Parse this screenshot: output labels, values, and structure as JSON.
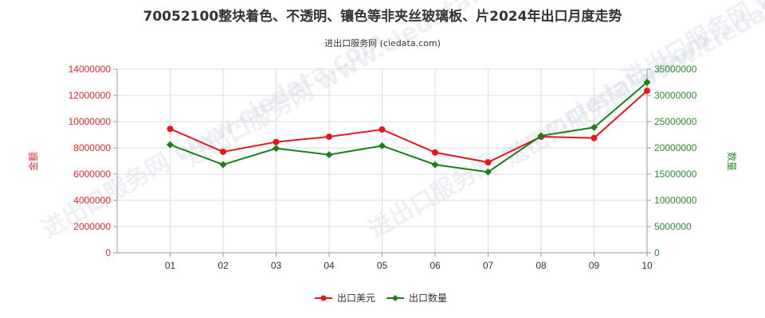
{
  "chart_data": {
    "type": "line",
    "title": "70052100整块着色、不透明、镶色等非夹丝玻璃板、片2024年出口月度走势",
    "subtitle": "进出口服务网 (ciedata.com)",
    "watermark": "进出口服务网 www.ciedata.com",
    "categories": [
      "01",
      "02",
      "03",
      "04",
      "05",
      "06",
      "07",
      "08",
      "09",
      "10"
    ],
    "y_left": {
      "label": "金额",
      "range": [
        0,
        14000000
      ],
      "ticks": [
        "0",
        "2000000",
        "4000000",
        "6000000",
        "8000000",
        "10000000",
        "12000000",
        "14000000"
      ],
      "color": "#e8282a"
    },
    "y_right": {
      "label": "数量",
      "range": [
        0,
        35000000
      ],
      "ticks": [
        "0",
        "5000000",
        "10000000",
        "15000000",
        "20000000",
        "25000000",
        "30000000",
        "35000000"
      ],
      "color": "#2e8b2e"
    },
    "series": [
      {
        "name": "出口美元",
        "axis": "left",
        "color": "#e8161b",
        "values": [
          9450000,
          7700000,
          8450000,
          8850000,
          9400000,
          7650000,
          6900000,
          8850000,
          8750000,
          12350000
        ]
      },
      {
        "name": "出口数量",
        "axis": "right",
        "color": "#1a7f1a",
        "values": [
          20600000,
          16800000,
          19900000,
          18700000,
          20400000,
          16800000,
          15400000,
          22300000,
          23900000,
          32500000
        ]
      }
    ],
    "grid": true,
    "legend": "bottom-center"
  }
}
